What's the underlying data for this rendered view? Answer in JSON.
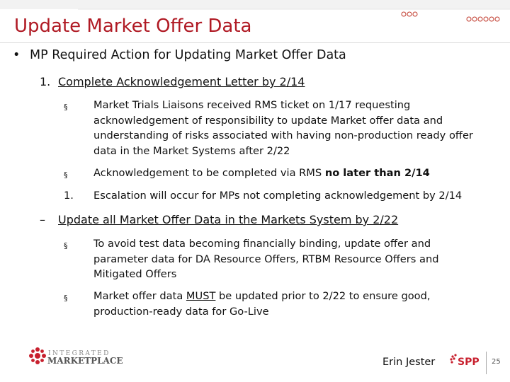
{
  "slide": {
    "title": "Update Market Offer Data",
    "main_bullet": "MP Required Action for Updating Market Offer Data",
    "sections": [
      {
        "marker": "1.",
        "heading": "Complete Acknowledgement Letter by 2/14",
        "items": [
          {
            "marker": "§",
            "lines": [
              "Market Trials Liaisons received RMS ticket on 1/17 requesting",
              "acknowledgement of responsibility to update Market offer data and",
              "understanding of risks associated with having non-production ready offer",
              "data in the Market Systems after 2/22"
            ]
          },
          {
            "marker": "§",
            "text_before": "Acknowledgement to be completed via RMS ",
            "text_bold": "no later than 2/14"
          },
          {
            "marker": "1.",
            "text": "Escalation will occur for MPs not completing acknowledgement by 2/14"
          }
        ]
      },
      {
        "marker": "–",
        "heading": "Update all Market Offer Data in the Markets System by 2/22",
        "items": [
          {
            "marker": "§",
            "lines": [
              "To avoid test data becoming financially binding, update offer and",
              "parameter data for DA Resource Offers, RTBM Resource Offers and",
              "Mitigated Offers"
            ]
          },
          {
            "marker": "§",
            "line1_before": "Market offer data ",
            "line1_underlined": "MUST",
            "line1_after": " be updated prior to 2/22 to ensure good,",
            "line2": "production-ready data for Go-Live"
          }
        ]
      }
    ]
  },
  "footer": {
    "logo_word1": "INTEGRATED",
    "logo_word2": "MARKETPLACE",
    "presenter": "Erin Jester",
    "spp_logo_text": "SPP",
    "page_number": "25"
  },
  "colors": {
    "title": "#b01a24",
    "logo_red": "#c8202e",
    "logo_gray": "#888888"
  },
  "icons": {
    "top_decoration": "dotted-circle-chain",
    "left_logo": "integrated-marketplace-logo",
    "right_logo": "spp-logo"
  }
}
